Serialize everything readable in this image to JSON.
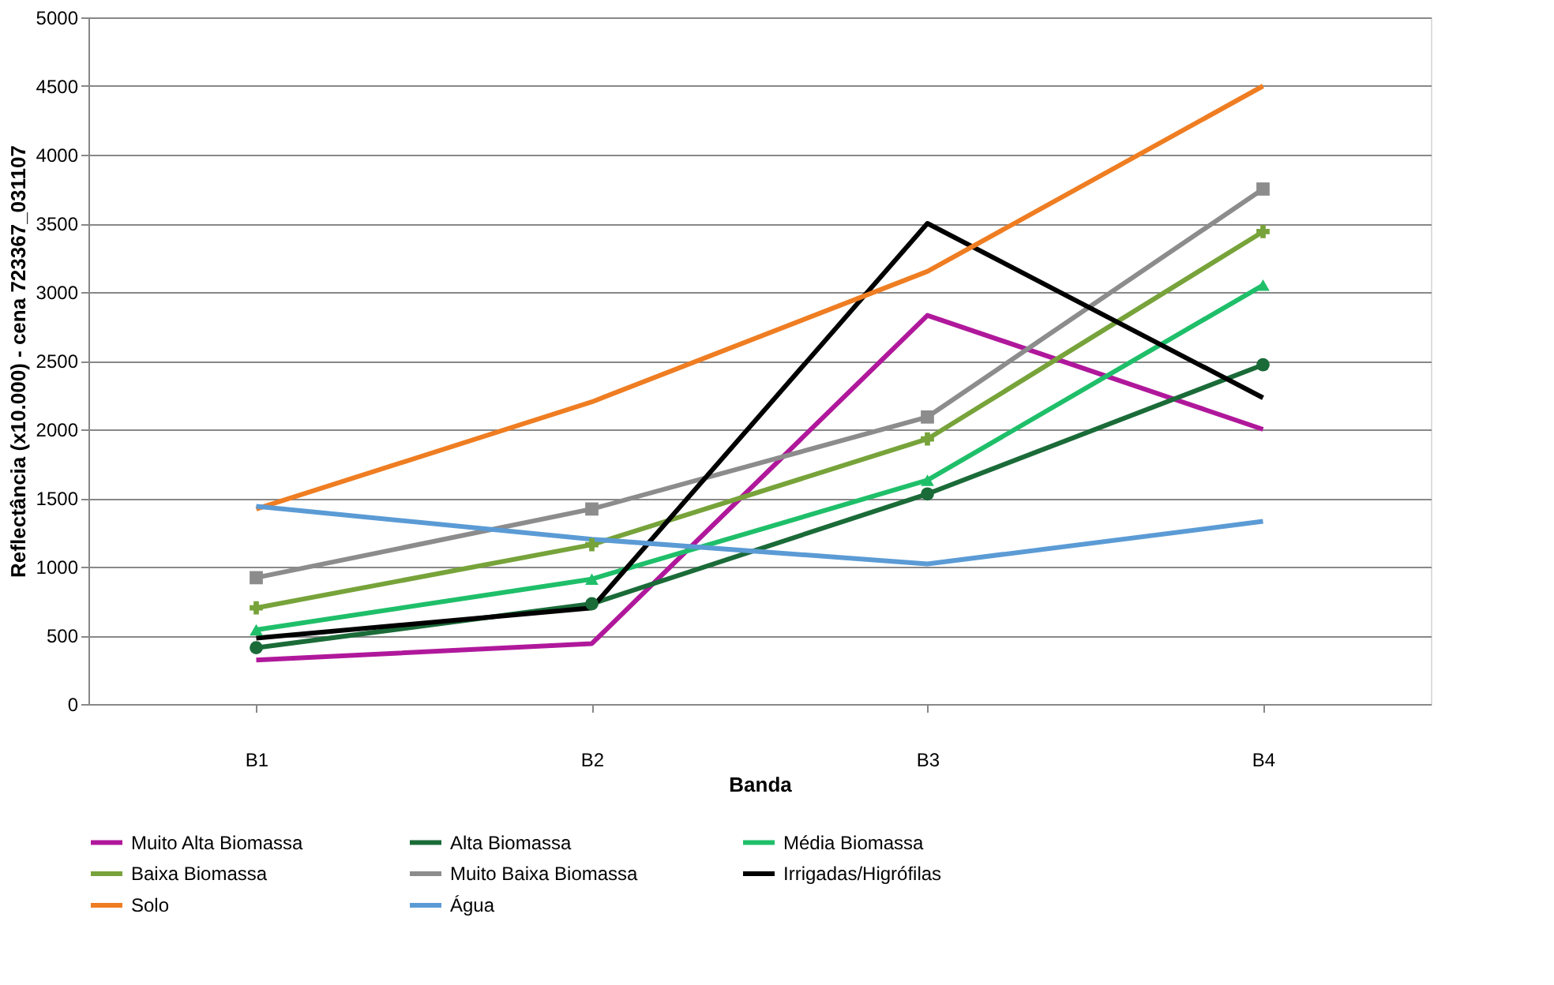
{
  "chart_data": {
    "type": "line",
    "xlabel": "Banda",
    "ylabel": "Reflectância (x10.000) - cena 723367_031107",
    "categories": [
      "B1",
      "B2",
      "B3",
      "B4"
    ],
    "ylim": [
      0,
      5000
    ],
    "yticks": [
      0,
      500,
      1000,
      1500,
      2000,
      2500,
      3000,
      3500,
      4000,
      4500,
      5000
    ],
    "grid": "y",
    "legend": "bottom",
    "line_style": "solid",
    "series": [
      {
        "name": "Muito Alta Biomassa",
        "color": "#b0189b",
        "marker": "none",
        "values": [
          320,
          440,
          2830,
          2000
        ]
      },
      {
        "name": "Alta Biomassa",
        "color": "#1a6b38",
        "marker": "circle",
        "values": [
          410,
          730,
          1530,
          2470
        ]
      },
      {
        "name": "Média Biomassa",
        "color": "#1fbf6a",
        "marker": "triangle",
        "values": [
          540,
          910,
          1630,
          3050
        ]
      },
      {
        "name": "Baixa Biomassa",
        "color": "#77a33a",
        "marker": "cross",
        "values": [
          700,
          1160,
          1930,
          3440
        ]
      },
      {
        "name": "Muito Baixa Biomassa",
        "color": "#8c8c8c",
        "marker": "square",
        "values": [
          920,
          1420,
          2090,
          3750
        ]
      },
      {
        "name": "Irrigadas/Higrófilas",
        "color": "#000000",
        "marker": "none",
        "values": [
          480,
          700,
          3500,
          2230
        ]
      },
      {
        "name": "Solo",
        "color": "#ef7d22",
        "marker": "none",
        "values": [
          1420,
          2200,
          3150,
          4500
        ]
      },
      {
        "name": "Água",
        "color": "#5b9bd5",
        "marker": "none",
        "values": [
          1440,
          1200,
          1020,
          1330
        ]
      }
    ]
  }
}
